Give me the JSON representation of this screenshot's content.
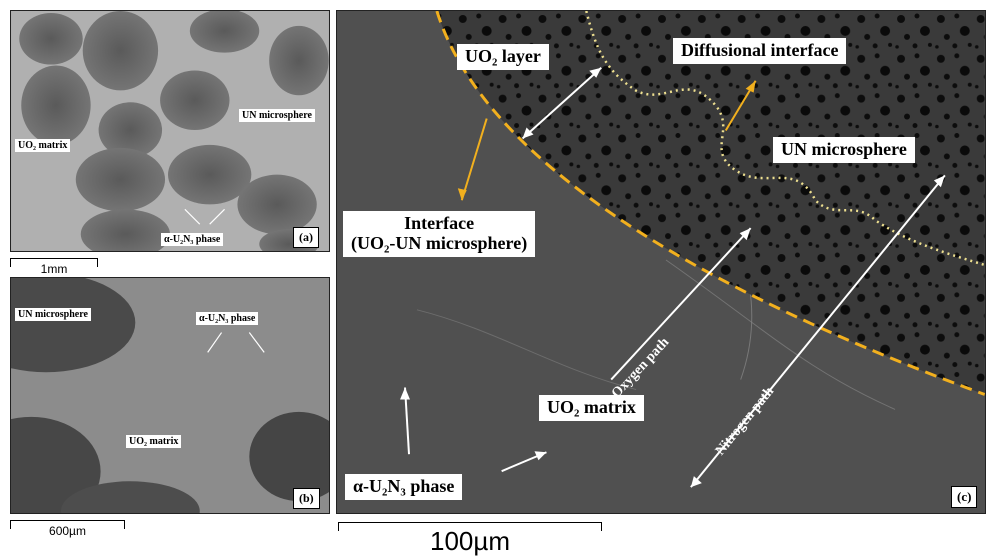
{
  "panel_a": {
    "uo2_matrix": "UO₂ matrix",
    "un_microsphere": "UN microsphere",
    "alpha_phase": "α-U₂N₃ phase",
    "panel_label": "(a)",
    "scale": "1mm"
  },
  "panel_b": {
    "un_microsphere": "UN microsphere",
    "alpha_phase": "α-U₂N₃ phase",
    "uo2_matrix": "UO₂ matrix",
    "panel_label": "(b)",
    "scale": "600µm"
  },
  "panel_c": {
    "uo2_layer": "UO₂ layer",
    "diffusional_interface": "Diffusional interface",
    "un_microsphere": "UN microsphere",
    "interface_line1": "Interface",
    "interface_line2": "(UO₂-UN microsphere)",
    "oxygen_path": "Oxygen path",
    "nitrogen_path": "Nitrogen path",
    "uo2_matrix": "UO₂ matrix",
    "alpha_phase": "α-U₂N₃ phase",
    "panel_label": "(c)",
    "scale": "100µm"
  },
  "colors": {
    "dashed_interface": "#f2b01e",
    "dotted_interface": "#eee090",
    "arrow_white": "#ffffff",
    "arrow_orange": "#f2b01e"
  }
}
